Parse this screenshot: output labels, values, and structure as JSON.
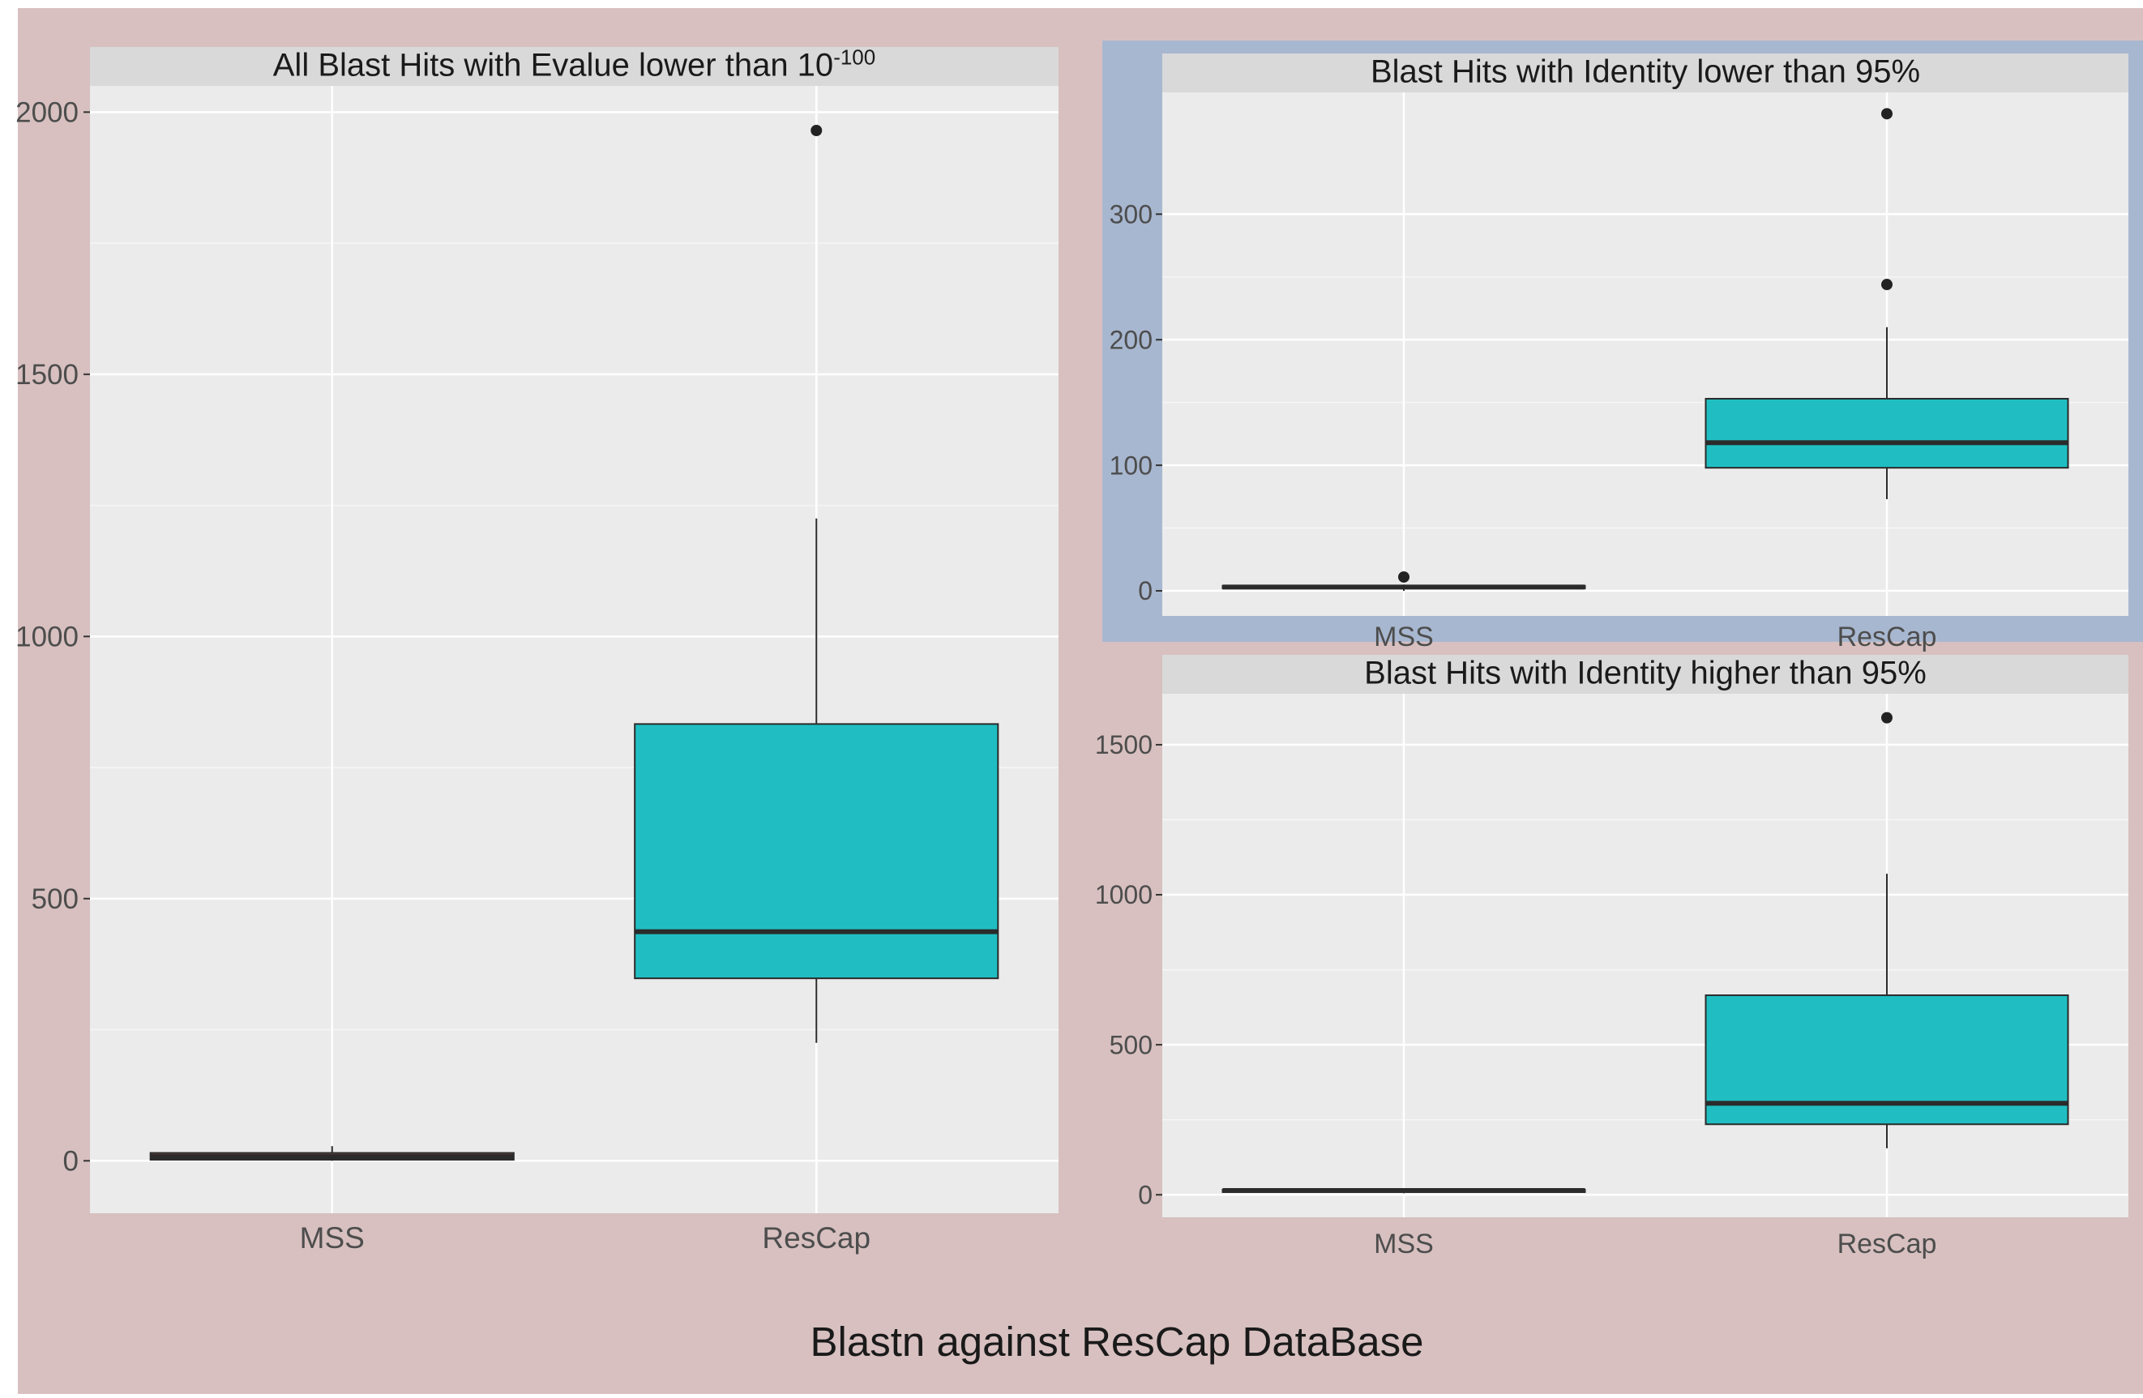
{
  "figure": {
    "caption": "Blastn against ResCap DataBase",
    "colors": {
      "outer_background": "#d8c0c0",
      "highlight_frame": "#a8b7d0",
      "panel_background": "#ebebeb",
      "strip_background": "#d9d9d9",
      "box_fill": "#20bec2",
      "box_line": "#2b2b2b",
      "mss_box_fill": "#8b4a4a",
      "axis_text": "#4d4d4d",
      "title_text": "#1a1a1a"
    }
  },
  "chart_data": [
    {
      "type": "boxplot",
      "title": "All Blast Hits with Evalue lower than 10",
      "title_superscript": "-100",
      "categories": [
        "MSS",
        "ResCap"
      ],
      "ylim": [
        -100,
        2050
      ],
      "yticks": [
        0,
        500,
        1000,
        1500,
        2000
      ],
      "ytick_labels": [
        "0",
        "500",
        "1000",
        "1500",
        "2000"
      ],
      "grid": true,
      "boxes": [
        {
          "category": "MSS",
          "min": 0,
          "q1": 2,
          "median": 8,
          "q3": 15,
          "max": 28,
          "outliers": []
        },
        {
          "category": "ResCap",
          "min": 225,
          "q1": 348,
          "median": 437,
          "q3": 833,
          "max": 1225,
          "outliers": [
            1965
          ]
        }
      ]
    },
    {
      "type": "boxplot",
      "title": "Blast Hits with Identity lower than 95%",
      "categories": [
        "MSS",
        "ResCap"
      ],
      "ylim": [
        -20,
        397
      ],
      "yticks": [
        0,
        100,
        200,
        300
      ],
      "ytick_labels": [
        "0",
        "100",
        "200",
        "300"
      ],
      "grid": true,
      "boxes": [
        {
          "category": "MSS",
          "min": 0,
          "q1": 2,
          "median": 3,
          "q3": 4,
          "max": 5,
          "outliers": [
            11
          ]
        },
        {
          "category": "ResCap",
          "min": 73,
          "q1": 98,
          "median": 118,
          "q3": 153,
          "max": 210,
          "outliers": [
            244,
            380
          ]
        }
      ]
    },
    {
      "type": "boxplot",
      "title": "Blast Hits with Identity higher than 95%",
      "categories": [
        "MSS",
        "ResCap"
      ],
      "ylim": [
        -75,
        1670
      ],
      "yticks": [
        0,
        500,
        1000,
        1500
      ],
      "ytick_labels": [
        "0",
        "500",
        "1000",
        "1500"
      ],
      "grid": true,
      "boxes": [
        {
          "category": "MSS",
          "min": 5,
          "q1": 10,
          "median": 14,
          "q3": 17,
          "max": 20,
          "outliers": []
        },
        {
          "category": "ResCap",
          "min": 155,
          "q1": 235,
          "median": 305,
          "q3": 665,
          "max": 1070,
          "outliers": [
            1590
          ]
        }
      ]
    }
  ]
}
